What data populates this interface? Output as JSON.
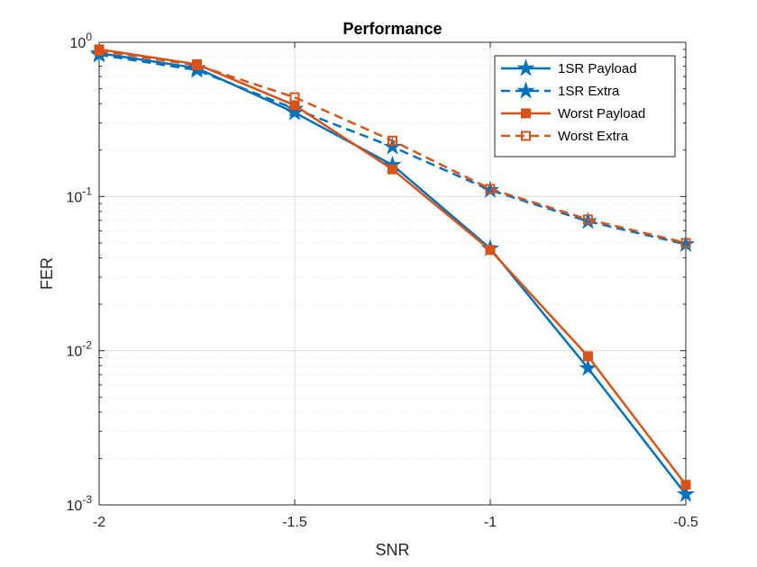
{
  "chart_data": {
    "type": "line",
    "title": "Performance",
    "xlabel": "SNR",
    "ylabel": "FER",
    "xlim": [
      -2,
      -0.5
    ],
    "ylim": [
      0.001,
      1
    ],
    "yscale": "log",
    "grid": true,
    "minor_grid": true,
    "legend_position": "top-right",
    "x_ticks": [
      "-2",
      "-1.5",
      "-1",
      "-0.5"
    ],
    "y_ticks": [
      {
        "mantissa": "10",
        "exponent": "0"
      },
      {
        "mantissa": "10",
        "exponent": "-1"
      },
      {
        "mantissa": "10",
        "exponent": "-2"
      },
      {
        "mantissa": "10",
        "exponent": "-3"
      }
    ],
    "x": [
      -2,
      -1.75,
      -1.5,
      -1.25,
      -1,
      -0.75,
      -0.5
    ],
    "series": [
      {
        "name": "1SR Payload",
        "color": "#0072BD",
        "line_style": "solid",
        "marker": "star",
        "values": [
          0.85,
          0.68,
          0.35,
          0.16,
          0.046,
          0.0077,
          0.00117
        ]
      },
      {
        "name": "1SR Extra",
        "color": "#0072BD",
        "line_style": "dashed",
        "marker": "star",
        "values": [
          0.83,
          0.66,
          0.37,
          0.21,
          0.11,
          0.069,
          0.049
        ]
      },
      {
        "name": "Worst Payload",
        "color": "#D95319",
        "line_style": "solid",
        "marker": "square-filled",
        "values": [
          0.9,
          0.72,
          0.39,
          0.15,
          0.045,
          0.0092,
          0.00135
        ]
      },
      {
        "name": "Worst Extra",
        "color": "#D95319",
        "line_style": "dashed",
        "marker": "square-open",
        "values": [
          0.88,
          0.71,
          0.44,
          0.23,
          0.112,
          0.071,
          0.05
        ]
      }
    ]
  }
}
